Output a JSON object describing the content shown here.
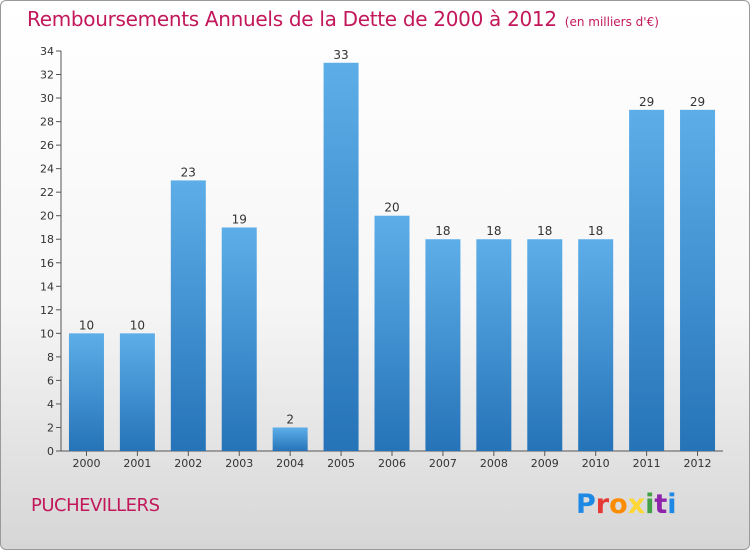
{
  "header": {
    "title": "Remboursements Annuels de la Dette de 2000 à 2012",
    "subtitle": "(en milliers d'€)"
  },
  "footer": {
    "commune": "PUCHEVILLERS",
    "logo_letters": [
      "P",
      "r",
      "o",
      "x",
      "i",
      "t",
      "i"
    ],
    "logo_colors": [
      "#1e88e5",
      "#e53935",
      "#fb8c00",
      "#fdd835",
      "#43a047",
      "#8e24aa",
      "#1e88e5"
    ]
  },
  "chart_data": {
    "type": "bar",
    "title": "Remboursements Annuels de la Dette de 2000 à 2012",
    "categories": [
      "2000",
      "2001",
      "2002",
      "2003",
      "2004",
      "2005",
      "2006",
      "2007",
      "2008",
      "2009",
      "2010",
      "2011",
      "2012"
    ],
    "values": [
      10,
      10,
      23,
      19,
      2,
      33,
      20,
      18,
      18,
      18,
      18,
      29,
      29
    ],
    "ylim": [
      0,
      34
    ],
    "yticks": [
      0,
      2,
      4,
      6,
      8,
      10,
      12,
      14,
      16,
      18,
      20,
      22,
      24,
      26,
      28,
      30,
      32,
      34
    ],
    "grid": false,
    "bar_color": "#4a9fe0",
    "bar_color_dark": "#2a78c0"
  }
}
